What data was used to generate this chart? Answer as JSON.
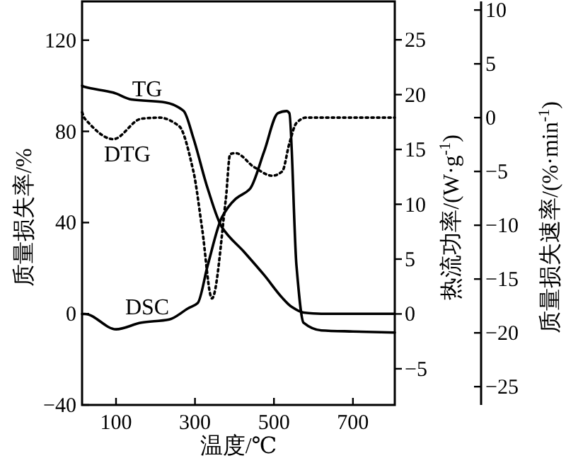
{
  "chart_data": {
    "type": "line",
    "xlabel": "温度/℃",
    "ylabel": "质量损失率/%",
    "y2label": "热流功率/(W·g$^{-1}$)",
    "y3label": "质量损失速率/(%·min$^{-1}$)",
    "xlim": [
      14,
      806
    ],
    "xticks": [
      100,
      300,
      500,
      700
    ],
    "ylim": [
      -40,
      137
    ],
    "yticks": [
      -40,
      0,
      40,
      80,
      120
    ],
    "y2lim": [
      -8.3,
      28.5
    ],
    "y2ticks": [
      -5,
      0,
      5,
      10,
      15,
      20,
      25
    ],
    "y3lim": [
      -26.7,
      10.8
    ],
    "y3ticks": [
      -25,
      -20,
      -15,
      -10,
      -5,
      0,
      5,
      10
    ],
    "grid": false,
    "series": [
      {
        "name": "TG",
        "color": "#000000",
        "line_style": "solid",
        "x": [
          14,
          21,
          93,
          139,
          225,
          271,
          296,
          332,
          368,
          425,
          475,
          521,
          545,
          575,
          620,
          806
        ],
        "values": [
          100,
          99.5,
          97,
          94,
          92.7,
          89,
          77,
          55,
          38,
          27,
          17,
          7,
          3,
          0.5,
          0,
          0
        ]
      },
      {
        "name": "DTG",
        "color": "#000000",
        "line_style": "dotted",
        "axis": "y3",
        "x": [
          14,
          21,
          93,
          164,
          210,
          260,
          296,
          318,
          343,
          378,
          389,
          403,
          450,
          496,
          521,
          539,
          557,
          580,
          806
        ],
        "values": [
          0.5,
          -0.1,
          -2,
          -0.1,
          0,
          -0.8,
          -5,
          -10.3,
          -16.8,
          -7.6,
          -3.4,
          -3.3,
          -4.6,
          -5.4,
          -5,
          -2.4,
          -0.5,
          0,
          0
        ]
      },
      {
        "name": "DSC",
        "color": "#000000",
        "line_style": "solid",
        "axis": "y2",
        "x": [
          14,
          21,
          100,
          164,
          235,
          282,
          307,
          332,
          368,
          403,
          439,
          475,
          510,
          532,
          539,
          557,
          575,
          620,
          700,
          806
        ],
        "values": [
          0,
          0,
          -1.4,
          -0.8,
          -0.5,
          0.5,
          1.0,
          4.4,
          8.8,
          10.5,
          11.4,
          14.8,
          18.3,
          18.5,
          18.3,
          4.4,
          -0.8,
          -1.5,
          -1.6,
          -1.7
        ]
      }
    ]
  }
}
